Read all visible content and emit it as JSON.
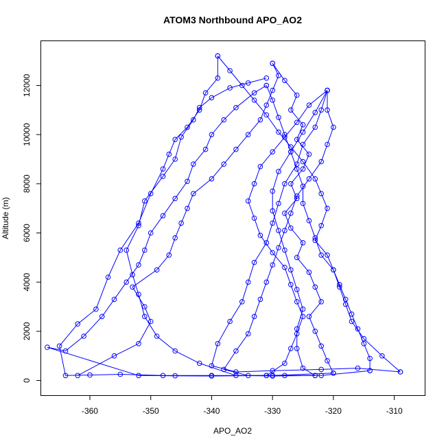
{
  "chart_data": {
    "type": "line",
    "title": "ATOM3 Northbound APO_AO2",
    "xlabel": "APO_AO2",
    "ylabel": "Altitude (m)",
    "xlim": [
      -368,
      -305
    ],
    "ylim": [
      -600,
      13800
    ],
    "xticks": [
      -360,
      -350,
      -340,
      -330,
      -320,
      -310
    ],
    "yticks": [
      0,
      2000,
      4000,
      6000,
      8000,
      10000,
      12000
    ],
    "grid": false,
    "color": "#0000ff",
    "marker": "open-circle",
    "series": [
      {
        "points": [
          [
            -362,
            200
          ],
          [
            -356,
            1000
          ],
          [
            -352,
            1500
          ],
          [
            -350,
            2400
          ],
          [
            -351,
            3000
          ],
          [
            -353,
            3800
          ],
          [
            -349,
            4500
          ],
          [
            -347,
            5100
          ],
          [
            -346,
            5800
          ],
          [
            -345,
            6400
          ],
          [
            -344,
            7000
          ],
          [
            -343,
            7600
          ],
          [
            -340,
            8200
          ],
          [
            -338,
            8800
          ],
          [
            -336,
            9400
          ],
          [
            -334,
            10000
          ],
          [
            -332,
            10600
          ],
          [
            -331,
            11200
          ],
          [
            -330,
            11800
          ],
          [
            -329,
            12400
          ],
          [
            -330,
            12900
          ]
        ]
      },
      {
        "points": [
          [
            -330,
            12900
          ],
          [
            -328,
            12200
          ],
          [
            -326,
            11600
          ],
          [
            -327,
            11000
          ],
          [
            -325,
            10400
          ],
          [
            -326,
            9800
          ],
          [
            -324,
            9200
          ],
          [
            -325,
            8600
          ],
          [
            -327,
            8000
          ],
          [
            -326,
            7400
          ],
          [
            -328,
            6800
          ],
          [
            -327,
            6200
          ],
          [
            -325,
            5600
          ],
          [
            -326,
            5000
          ],
          [
            -324,
            4400
          ],
          [
            -323,
            3800
          ],
          [
            -322,
            3200
          ],
          [
            -324,
            2600
          ],
          [
            -323,
            2000
          ],
          [
            -322,
            1400
          ],
          [
            -321,
            800
          ],
          [
            -320,
            300
          ]
        ]
      },
      {
        "points": [
          [
            -320,
            300
          ],
          [
            -330,
            200
          ],
          [
            -340,
            200
          ],
          [
            -348,
            200
          ],
          [
            -355,
            250
          ],
          [
            -360,
            220
          ],
          [
            -364,
            200
          ],
          [
            -365,
            1400
          ],
          [
            -362,
            2300
          ],
          [
            -359,
            2900
          ],
          [
            -357,
            4200
          ],
          [
            -355,
            5300
          ],
          [
            -352,
            6400
          ],
          [
            -350,
            7600
          ],
          [
            -348,
            8600
          ],
          [
            -347,
            9200
          ],
          [
            -346,
            9800
          ],
          [
            -344,
            10300
          ],
          [
            -342,
            11000
          ],
          [
            -341,
            11700
          ],
          [
            -339,
            12300
          ],
          [
            -339,
            13200
          ]
        ]
      },
      {
        "points": [
          [
            -339,
            13200
          ],
          [
            -337,
            12600
          ],
          [
            -335,
            12000
          ],
          [
            -333,
            11400
          ],
          [
            -331,
            10800
          ],
          [
            -329,
            10100
          ],
          [
            -327,
            9500
          ],
          [
            -325,
            8900
          ],
          [
            -323,
            8200
          ],
          [
            -322,
            7600
          ],
          [
            -321,
            7000
          ],
          [
            -322,
            6300
          ],
          [
            -323,
            5700
          ],
          [
            -321,
            5100
          ],
          [
            -320,
            4500
          ],
          [
            -319,
            3900
          ],
          [
            -318,
            3300
          ],
          [
            -317,
            2700
          ],
          [
            -316,
            2100
          ],
          [
            -315,
            1500
          ],
          [
            -314,
            900
          ],
          [
            -314,
            400
          ]
        ]
      },
      {
        "points": [
          [
            -314,
            400
          ],
          [
            -322,
            200
          ],
          [
            -328,
            200
          ],
          [
            -334,
            200
          ],
          [
            -338,
            450
          ],
          [
            -336,
            1200
          ],
          [
            -334,
            1900
          ],
          [
            -333,
            2600
          ],
          [
            -332,
            3300
          ],
          [
            -331,
            4000
          ],
          [
            -330,
            4700
          ],
          [
            -329,
            5400
          ],
          [
            -328,
            6100
          ],
          [
            -327,
            6800
          ],
          [
            -326,
            7500
          ],
          [
            -324,
            8200
          ],
          [
            -322,
            8900
          ],
          [
            -321,
            9600
          ],
          [
            -320,
            10300
          ],
          [
            -321,
            11000
          ],
          [
            -321,
            11800
          ]
        ]
      },
      {
        "points": [
          [
            -321,
            11800
          ],
          [
            -324,
            11200
          ],
          [
            -326,
            10500
          ],
          [
            -328,
            9900
          ],
          [
            -330,
            9300
          ],
          [
            -332,
            8700
          ],
          [
            -333,
            8000
          ],
          [
            -334,
            7300
          ],
          [
            -333,
            6600
          ],
          [
            -332,
            5900
          ],
          [
            -330,
            5200
          ],
          [
            -328,
            4600
          ],
          [
            -327,
            3900
          ],
          [
            -326,
            3200
          ],
          [
            -325,
            2600
          ],
          [
            -326,
            1900
          ],
          [
            -327,
            1300
          ],
          [
            -328,
            700
          ],
          [
            -331,
            200
          ]
        ]
      },
      {
        "points": [
          [
            -331,
            200
          ],
          [
            -340,
            180
          ],
          [
            -346,
            190
          ],
          [
            -352,
            200
          ],
          [
            -367,
            1350
          ],
          [
            -364,
            1200
          ],
          [
            -361,
            1800
          ],
          [
            -358,
            2600
          ],
          [
            -356,
            3300
          ],
          [
            -354,
            4000
          ],
          [
            -352,
            4700
          ],
          [
            -351,
            5300
          ],
          [
            -350,
            6000
          ],
          [
            -348,
            6700
          ],
          [
            -346,
            7400
          ],
          [
            -344,
            8100
          ],
          [
            -343,
            8800
          ],
          [
            -341,
            9400
          ],
          [
            -340,
            10000
          ],
          [
            -338,
            10600
          ],
          [
            -336,
            11100
          ],
          [
            -333,
            11700
          ],
          [
            -331,
            12000
          ]
        ]
      },
      {
        "points": [
          [
            -331,
            12000
          ],
          [
            -330,
            11400
          ],
          [
            -329,
            10700
          ],
          [
            -328,
            10000
          ],
          [
            -327,
            9300
          ],
          [
            -326,
            8600
          ],
          [
            -325,
            7900
          ],
          [
            -325,
            7200
          ],
          [
            -324,
            6500
          ],
          [
            -323,
            5800
          ],
          [
            -322,
            5100
          ],
          [
            -320,
            4500
          ],
          [
            -319,
            3800
          ],
          [
            -318,
            3100
          ],
          [
            -317,
            2400
          ],
          [
            -315,
            1700
          ],
          [
            -312,
            1000
          ],
          [
            -309,
            350
          ]
        ]
      },
      {
        "points": [
          [
            -309,
            350
          ],
          [
            -316,
            500
          ],
          [
            -322,
            450
          ],
          [
            -330,
            400
          ],
          [
            -336,
            350
          ],
          [
            -340,
            600
          ],
          [
            -339,
            1500
          ],
          [
            -337,
            2400
          ],
          [
            -335,
            3200
          ],
          [
            -334,
            4000
          ],
          [
            -333,
            4800
          ],
          [
            -331,
            5600
          ],
          [
            -330,
            6400
          ],
          [
            -329,
            7200
          ],
          [
            -328,
            8000
          ],
          [
            -326,
            8800
          ],
          [
            -325,
            9600
          ],
          [
            -323,
            10300
          ],
          [
            -322,
            11000
          ],
          [
            -321,
            11800
          ]
        ]
      },
      {
        "points": [
          [
            -321,
            11800
          ],
          [
            -323,
            10900
          ],
          [
            -325,
            10100
          ],
          [
            -327,
            9300
          ],
          [
            -329,
            8500
          ],
          [
            -330,
            7700
          ],
          [
            -330,
            6900
          ],
          [
            -329,
            6100
          ],
          [
            -328,
            5300
          ],
          [
            -327,
            4500
          ],
          [
            -326,
            3700
          ],
          [
            -325,
            2900
          ],
          [
            -326,
            2100
          ],
          [
            -326,
            1300
          ],
          [
            -325,
            500
          ],
          [
            -323,
            200
          ]
        ]
      },
      {
        "points": [
          [
            -323,
            200
          ],
          [
            -330,
            180
          ],
          [
            -336,
            200
          ],
          [
            -342,
            700
          ],
          [
            -346,
            1200
          ],
          [
            -349,
            1800
          ],
          [
            -351,
            2600
          ],
          [
            -352,
            3500
          ],
          [
            -353,
            4300
          ],
          [
            -354,
            5300
          ],
          [
            -352,
            6300
          ],
          [
            -351,
            7300
          ],
          [
            -348,
            8300
          ],
          [
            -346,
            9000
          ],
          [
            -345,
            9900
          ],
          [
            -343,
            10600
          ],
          [
            -342,
            11100
          ],
          [
            -340,
            11500
          ],
          [
            -337,
            11900
          ],
          [
            -334,
            12100
          ],
          [
            -331,
            12300
          ]
        ]
      }
    ]
  }
}
